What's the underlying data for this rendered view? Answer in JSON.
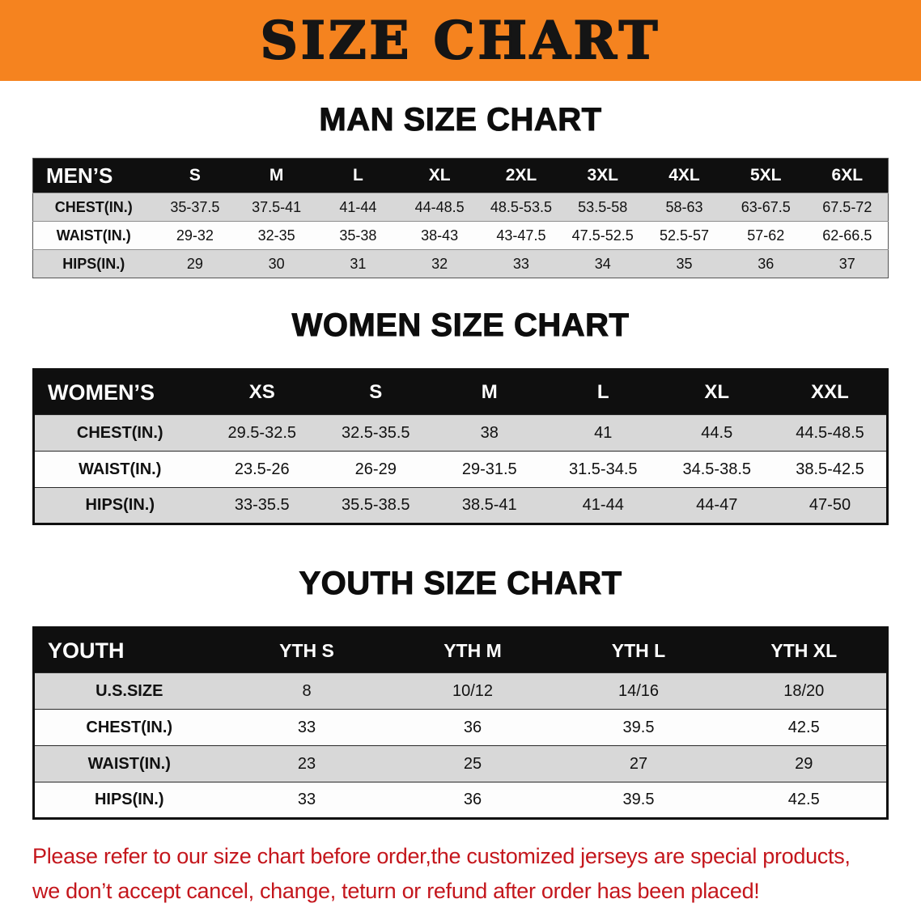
{
  "banner": {
    "title": "SIZE CHART",
    "bg_color": "#f5831f",
    "text_color": "#151515"
  },
  "sections": [
    {
      "heading": "MAN SIZE CHART",
      "table": {
        "header_label": "MEN’S",
        "columns": [
          "S",
          "M",
          "L",
          "XL",
          "2XL",
          "3XL",
          "4XL",
          "5XL",
          "6XL"
        ],
        "rows": [
          {
            "label": "CHEST(IN.)",
            "values": [
              "35-37.5",
              "37.5-41",
              "41-44",
              "44-48.5",
              "48.5-53.5",
              "53.5-58",
              "58-63",
              "63-67.5",
              "67.5-72"
            ]
          },
          {
            "label": "WAIST(IN.)",
            "values": [
              "29-32",
              "32-35",
              "35-38",
              "38-43",
              "43-47.5",
              "47.5-52.5",
              "52.5-57",
              "57-62",
              "62-66.5"
            ]
          },
          {
            "label": "HIPS(IN.)",
            "values": [
              "29",
              "30",
              "31",
              "32",
              "33",
              "34",
              "35",
              "36",
              "37"
            ]
          }
        ]
      }
    },
    {
      "heading": "WOMEN SIZE CHART",
      "table": {
        "header_label": "WOMEN’S",
        "columns": [
          "XS",
          "S",
          "M",
          "L",
          "XL",
          "XXL"
        ],
        "rows": [
          {
            "label": "CHEST(IN.)",
            "values": [
              "29.5-32.5",
              "32.5-35.5",
              "38",
              "41",
              "44.5",
              "44.5-48.5"
            ]
          },
          {
            "label": "WAIST(IN.)",
            "values": [
              "23.5-26",
              "26-29",
              "29-31.5",
              "31.5-34.5",
              "34.5-38.5",
              "38.5-42.5"
            ]
          },
          {
            "label": "HIPS(IN.)",
            "values": [
              "33-35.5",
              "35.5-38.5",
              "38.5-41",
              "41-44",
              "44-47",
              "47-50"
            ]
          }
        ]
      }
    },
    {
      "heading": "YOUTH SIZE CHART",
      "table": {
        "header_label": "YOUTH",
        "columns": [
          "YTH S",
          "YTH M",
          "YTH L",
          "YTH XL"
        ],
        "rows": [
          {
            "label": "U.S.SIZE",
            "values": [
              "8",
              "10/12",
              "14/16",
              "18/20"
            ]
          },
          {
            "label": "CHEST(IN.)",
            "values": [
              "33",
              "36",
              "39.5",
              "42.5"
            ]
          },
          {
            "label": "WAIST(IN.)",
            "values": [
              "23",
              "25",
              "27",
              "29"
            ]
          },
          {
            "label": "HIPS(IN.)",
            "values": [
              "33",
              "36",
              "39.5",
              "42.5"
            ]
          }
        ]
      }
    }
  ],
  "footer": {
    "line1": "Please refer to our size chart before order,the customized jerseys are special products,",
    "line2": "we don’t accept cancel, change, teturn or refund after order has been placed!",
    "text_color": "#c4161c"
  }
}
